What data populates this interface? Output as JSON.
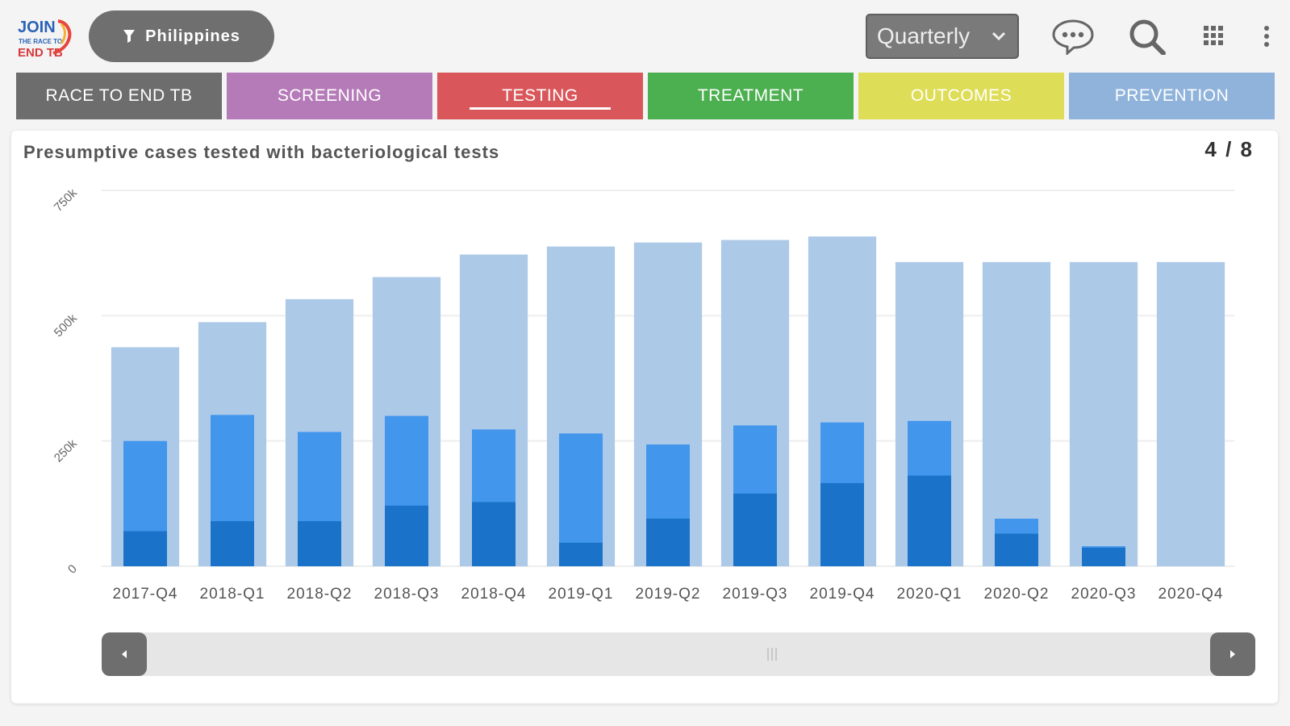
{
  "header": {
    "logo_text": [
      "JOIN",
      "THE RACE TO",
      "END TB"
    ],
    "filter_label": "Philippines",
    "period_select": "Quarterly",
    "icons": [
      "comment-icon",
      "search-icon",
      "apps-grid-icon",
      "more-vertical-icon"
    ]
  },
  "tabs": [
    {
      "label": "RACE TO END TB",
      "color": "#6d6d6d",
      "active": false
    },
    {
      "label": "SCREENING",
      "color": "#b57ab8",
      "active": false
    },
    {
      "label": "TESTING",
      "color": "#d9575a",
      "active": true
    },
    {
      "label": "TREATMENT",
      "color": "#4caf50",
      "active": false
    },
    {
      "label": "OUTCOMES",
      "color": "#dedd57",
      "active": false
    },
    {
      "label": "PREVENTION",
      "color": "#8fb3db",
      "active": false
    }
  ],
  "card": {
    "title": "Presumptive cases tested with bacteriological tests",
    "pager": "4 / 8"
  },
  "chart_data": {
    "type": "bar",
    "categories": [
      "2017-Q4",
      "2018-Q1",
      "2018-Q2",
      "2018-Q3",
      "2018-Q4",
      "2019-Q1",
      "2019-Q2",
      "2019-Q3",
      "2019-Q4",
      "2020-Q1",
      "2020-Q2",
      "2020-Q3",
      "2020-Q4"
    ],
    "series": [
      {
        "color": "#adc9e8",
        "values": [
          437000,
          487000,
          533000,
          577000,
          622000,
          638000,
          646000,
          651000,
          658000,
          607000,
          607000,
          607000,
          607000
        ]
      },
      {
        "color": "#4296ec",
        "values": [
          250000,
          302000,
          268000,
          300000,
          273000,
          265000,
          243000,
          281000,
          287000,
          290000,
          95000,
          40000,
          0
        ]
      },
      {
        "color": "#1a73c8",
        "values": [
          70000,
          90000,
          90000,
          121000,
          128000,
          47000,
          95000,
          145000,
          166000,
          181000,
          65000,
          37000,
          0
        ]
      }
    ],
    "y_ticks": [
      "0",
      "250k",
      "500k",
      "750k"
    ],
    "ylim": [
      0,
      750000
    ],
    "grid": true,
    "legend": "none",
    "title": "",
    "xlabel": "",
    "ylabel": ""
  },
  "colors": {
    "bar_back": "#adc9e8",
    "bar_mid": "#4296ec",
    "bar_front": "#1a73c8",
    "grid": "#eeeeee"
  }
}
